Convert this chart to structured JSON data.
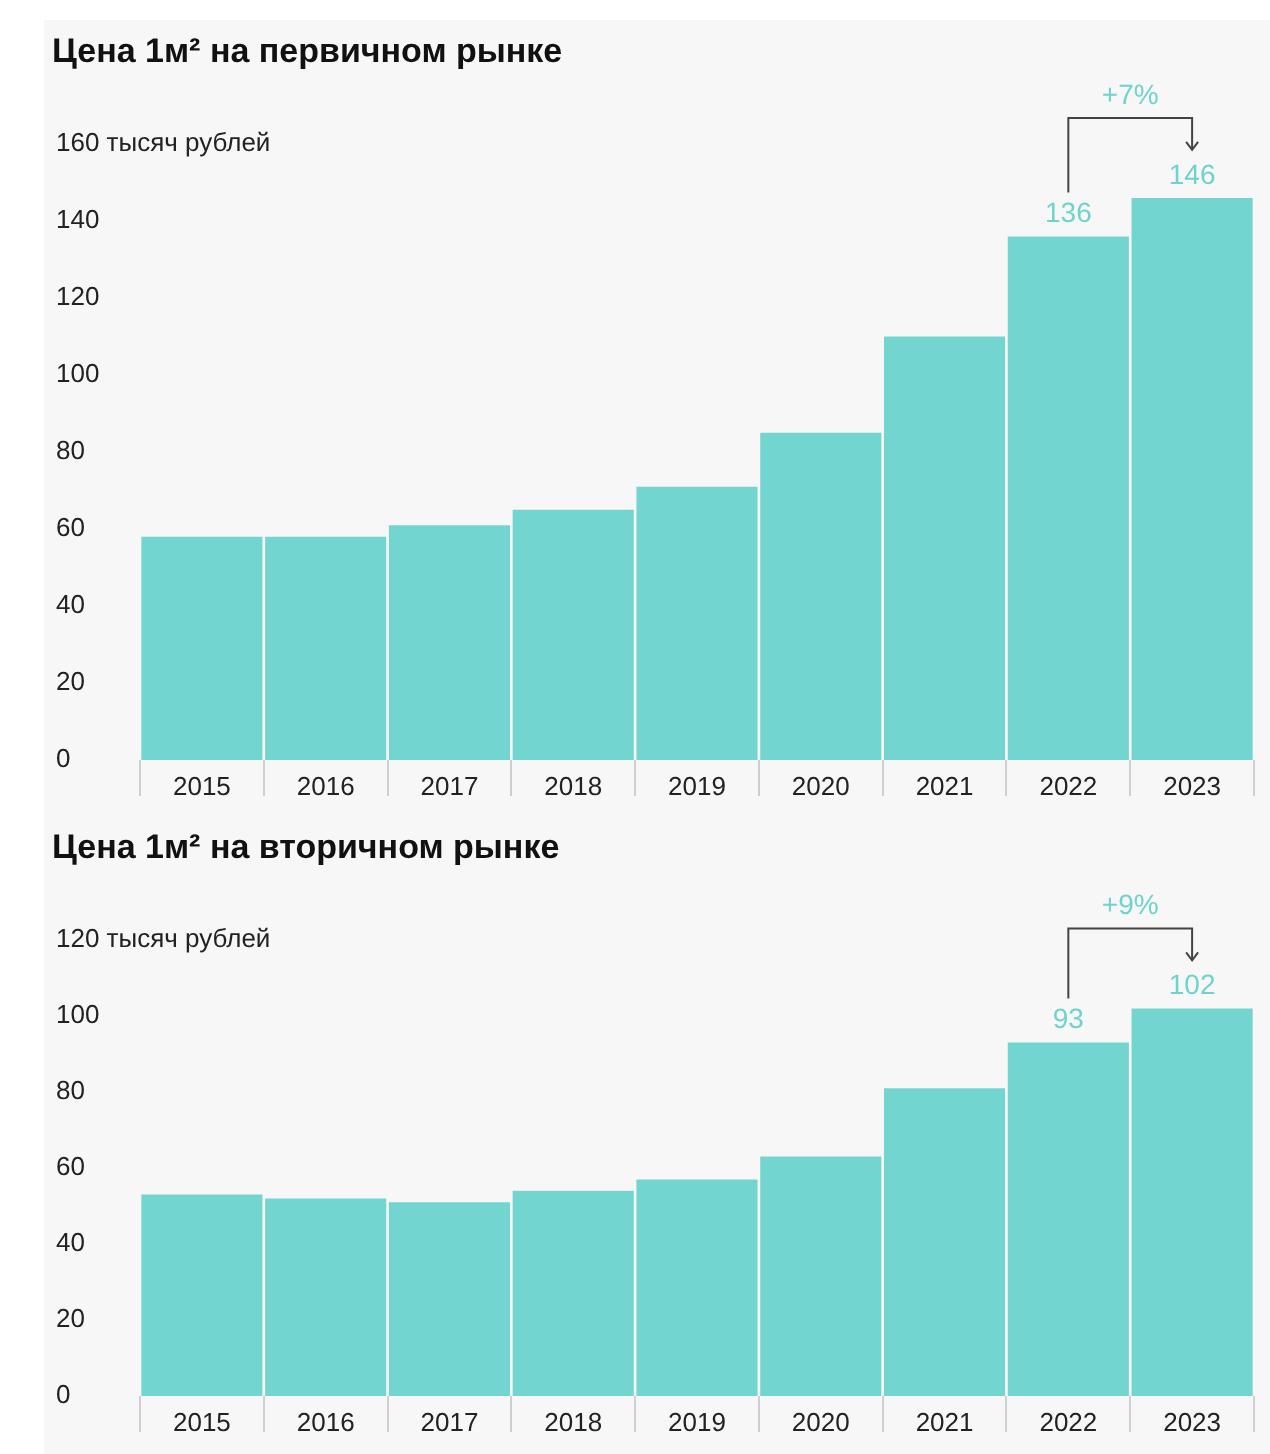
{
  "chart_data": [
    {
      "type": "bar",
      "title": "Цена 1м² на первичном рынке",
      "categories": [
        "2015",
        "2016",
        "2017",
        "2018",
        "2019",
        "2020",
        "2021",
        "2022",
        "2023"
      ],
      "values": [
        58,
        58,
        61,
        65,
        71,
        85,
        110,
        136,
        146
      ],
      "color": "#72d5d0",
      "value_labels": [
        null,
        null,
        null,
        null,
        null,
        null,
        null,
        "136",
        "146"
      ],
      "ylim": [
        0,
        160
      ],
      "yticks": [
        0,
        20,
        40,
        60,
        80,
        100,
        120,
        140,
        {
          "value": 160,
          "label": "160 тысяч рублей"
        }
      ],
      "annotations": [
        "+7%"
      ],
      "grid": false,
      "legend": false
    },
    {
      "type": "bar",
      "title": "Цена 1м² на вторичном рынке",
      "categories": [
        "2015",
        "2016",
        "2017",
        "2018",
        "2019",
        "2020",
        "2021",
        "2022",
        "2023"
      ],
      "values": [
        53,
        52,
        51,
        54,
        57,
        63,
        81,
        93,
        102
      ],
      "color": "#72d5d0",
      "value_labels": [
        null,
        null,
        null,
        null,
        null,
        null,
        null,
        "93",
        "102"
      ],
      "ylim": [
        0,
        120
      ],
      "yticks": [
        0,
        20,
        40,
        60,
        80,
        100,
        {
          "value": 120,
          "label": "120 тысяч рублей"
        }
      ],
      "annotations": [
        "+9%"
      ],
      "grid": false,
      "legend": false
    }
  ]
}
